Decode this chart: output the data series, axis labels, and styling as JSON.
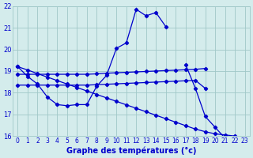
{
  "title": "Graphe des températures (°c)",
  "hours": [
    0,
    1,
    2,
    3,
    4,
    5,
    6,
    7,
    8,
    9,
    10,
    11,
    12,
    13,
    14,
    15,
    16,
    17,
    18,
    19,
    20,
    21,
    22,
    23
  ],
  "line_temp": [
    19.2,
    18.75,
    18.4,
    17.8,
    17.45,
    17.4,
    17.45,
    17.45,
    18.3,
    18.8,
    20.05,
    20.3,
    21.85,
    21.55,
    21.7,
    21.05,
    null,
    19.3,
    18.2,
    16.9,
    16.4,
    15.9,
    null,
    null
  ],
  "line_upper_flat": [
    18.85,
    18.85,
    18.85,
    18.85,
    18.85,
    18.85,
    18.85,
    18.85,
    18.87,
    18.9,
    18.92,
    18.94,
    18.96,
    18.98,
    19.0,
    19.02,
    19.04,
    19.06,
    19.08,
    19.12,
    null,
    null,
    null,
    null
  ],
  "line_mid_flat": [
    18.35,
    18.35,
    18.35,
    18.35,
    18.35,
    18.35,
    18.35,
    18.35,
    18.37,
    18.39,
    18.41,
    18.43,
    18.45,
    18.47,
    18.49,
    18.51,
    18.53,
    18.55,
    18.57,
    18.2,
    null,
    null,
    null,
    null
  ],
  "line_decline": [
    19.2,
    19.05,
    18.88,
    18.72,
    18.56,
    18.4,
    18.24,
    18.08,
    17.92,
    17.76,
    17.6,
    17.44,
    17.28,
    17.12,
    16.96,
    16.8,
    16.64,
    16.48,
    16.32,
    16.2,
    16.1,
    16.05,
    16.0,
    15.9
  ],
  "ylim": [
    16,
    22
  ],
  "xlim": [
    -0.5,
    23.5
  ],
  "yticks": [
    16,
    17,
    18,
    19,
    20,
    21,
    22
  ],
  "xticks": [
    0,
    1,
    2,
    3,
    4,
    5,
    6,
    7,
    8,
    9,
    10,
    11,
    12,
    13,
    14,
    15,
    16,
    17,
    18,
    19,
    20,
    21,
    22,
    23
  ],
  "line_color": "#0000cc",
  "bg_color": "#d4ecec",
  "grid_color": "#a0c8c8",
  "xlabel_color": "#0000cc"
}
